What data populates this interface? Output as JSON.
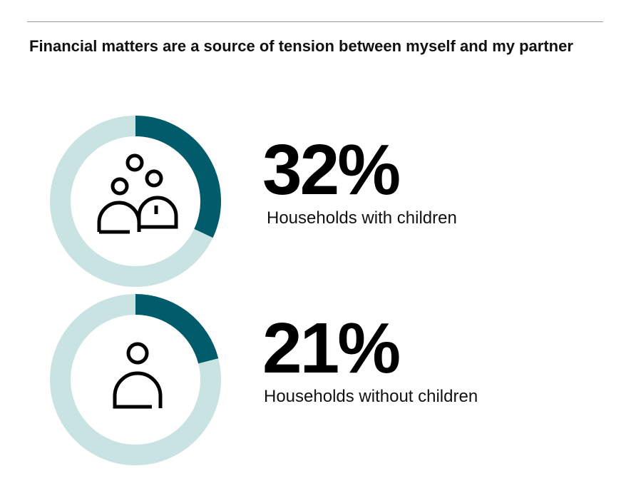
{
  "chart_data": {
    "type": "donut",
    "title": "Financial matters are a source of tension between myself and my partner",
    "categories": [
      "Households with children",
      "Households without children"
    ],
    "values": [
      32,
      21
    ],
    "value_labels": [
      "32%",
      "21%"
    ],
    "color": "#005b6b",
    "track_color": "#c9e3e2"
  }
}
